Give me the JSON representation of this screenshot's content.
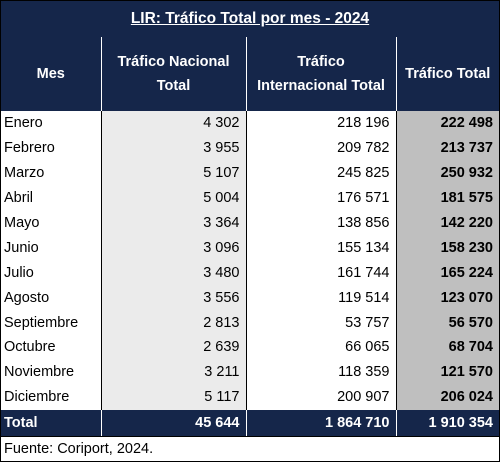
{
  "title": "LIR: Tráfico Total por mes - 2024",
  "headers": {
    "mes": "Mes",
    "nacional": [
      "Tráfico Nacional",
      "Total"
    ],
    "internacional": [
      "Tráfico",
      "Internacional Total"
    ],
    "total": "Tráfico Total"
  },
  "rows": [
    {
      "mes": "Enero",
      "nacional": "4 302",
      "internacional": "218 196",
      "total": "222 498"
    },
    {
      "mes": "Febrero",
      "nacional": "3 955",
      "internacional": "209 782",
      "total": "213 737"
    },
    {
      "mes": "Marzo",
      "nacional": "5 107",
      "internacional": "245 825",
      "total": "250 932"
    },
    {
      "mes": "Abril",
      "nacional": "5 004",
      "internacional": "176 571",
      "total": "181 575"
    },
    {
      "mes": "Mayo",
      "nacional": "3 364",
      "internacional": "138 856",
      "total": "142 220"
    },
    {
      "mes": "Junio",
      "nacional": "3 096",
      "internacional": "155 134",
      "total": "158 230"
    },
    {
      "mes": "Julio",
      "nacional": "3 480",
      "internacional": "161 744",
      "total": "165 224"
    },
    {
      "mes": "Agosto",
      "nacional": "3 556",
      "internacional": "119 514",
      "total": "123 070"
    },
    {
      "mes": "Septiembre",
      "nacional": "2 813",
      "internacional": "53 757",
      "total": "56 570"
    },
    {
      "mes": "Octubre",
      "nacional": "2 639",
      "internacional": "66 065",
      "total": "68 704"
    },
    {
      "mes": "Noviembre",
      "nacional": "3 211",
      "internacional": "118 359",
      "total": "121 570"
    },
    {
      "mes": "Diciembre",
      "nacional": "5 117",
      "internacional": "200 907",
      "total": "206 024"
    }
  ],
  "totals": {
    "label": "Total",
    "nacional": "45 644",
    "internacional": "1 864 710",
    "total": "1 910 354"
  },
  "source": "Fuente: Coriport, 2024."
}
